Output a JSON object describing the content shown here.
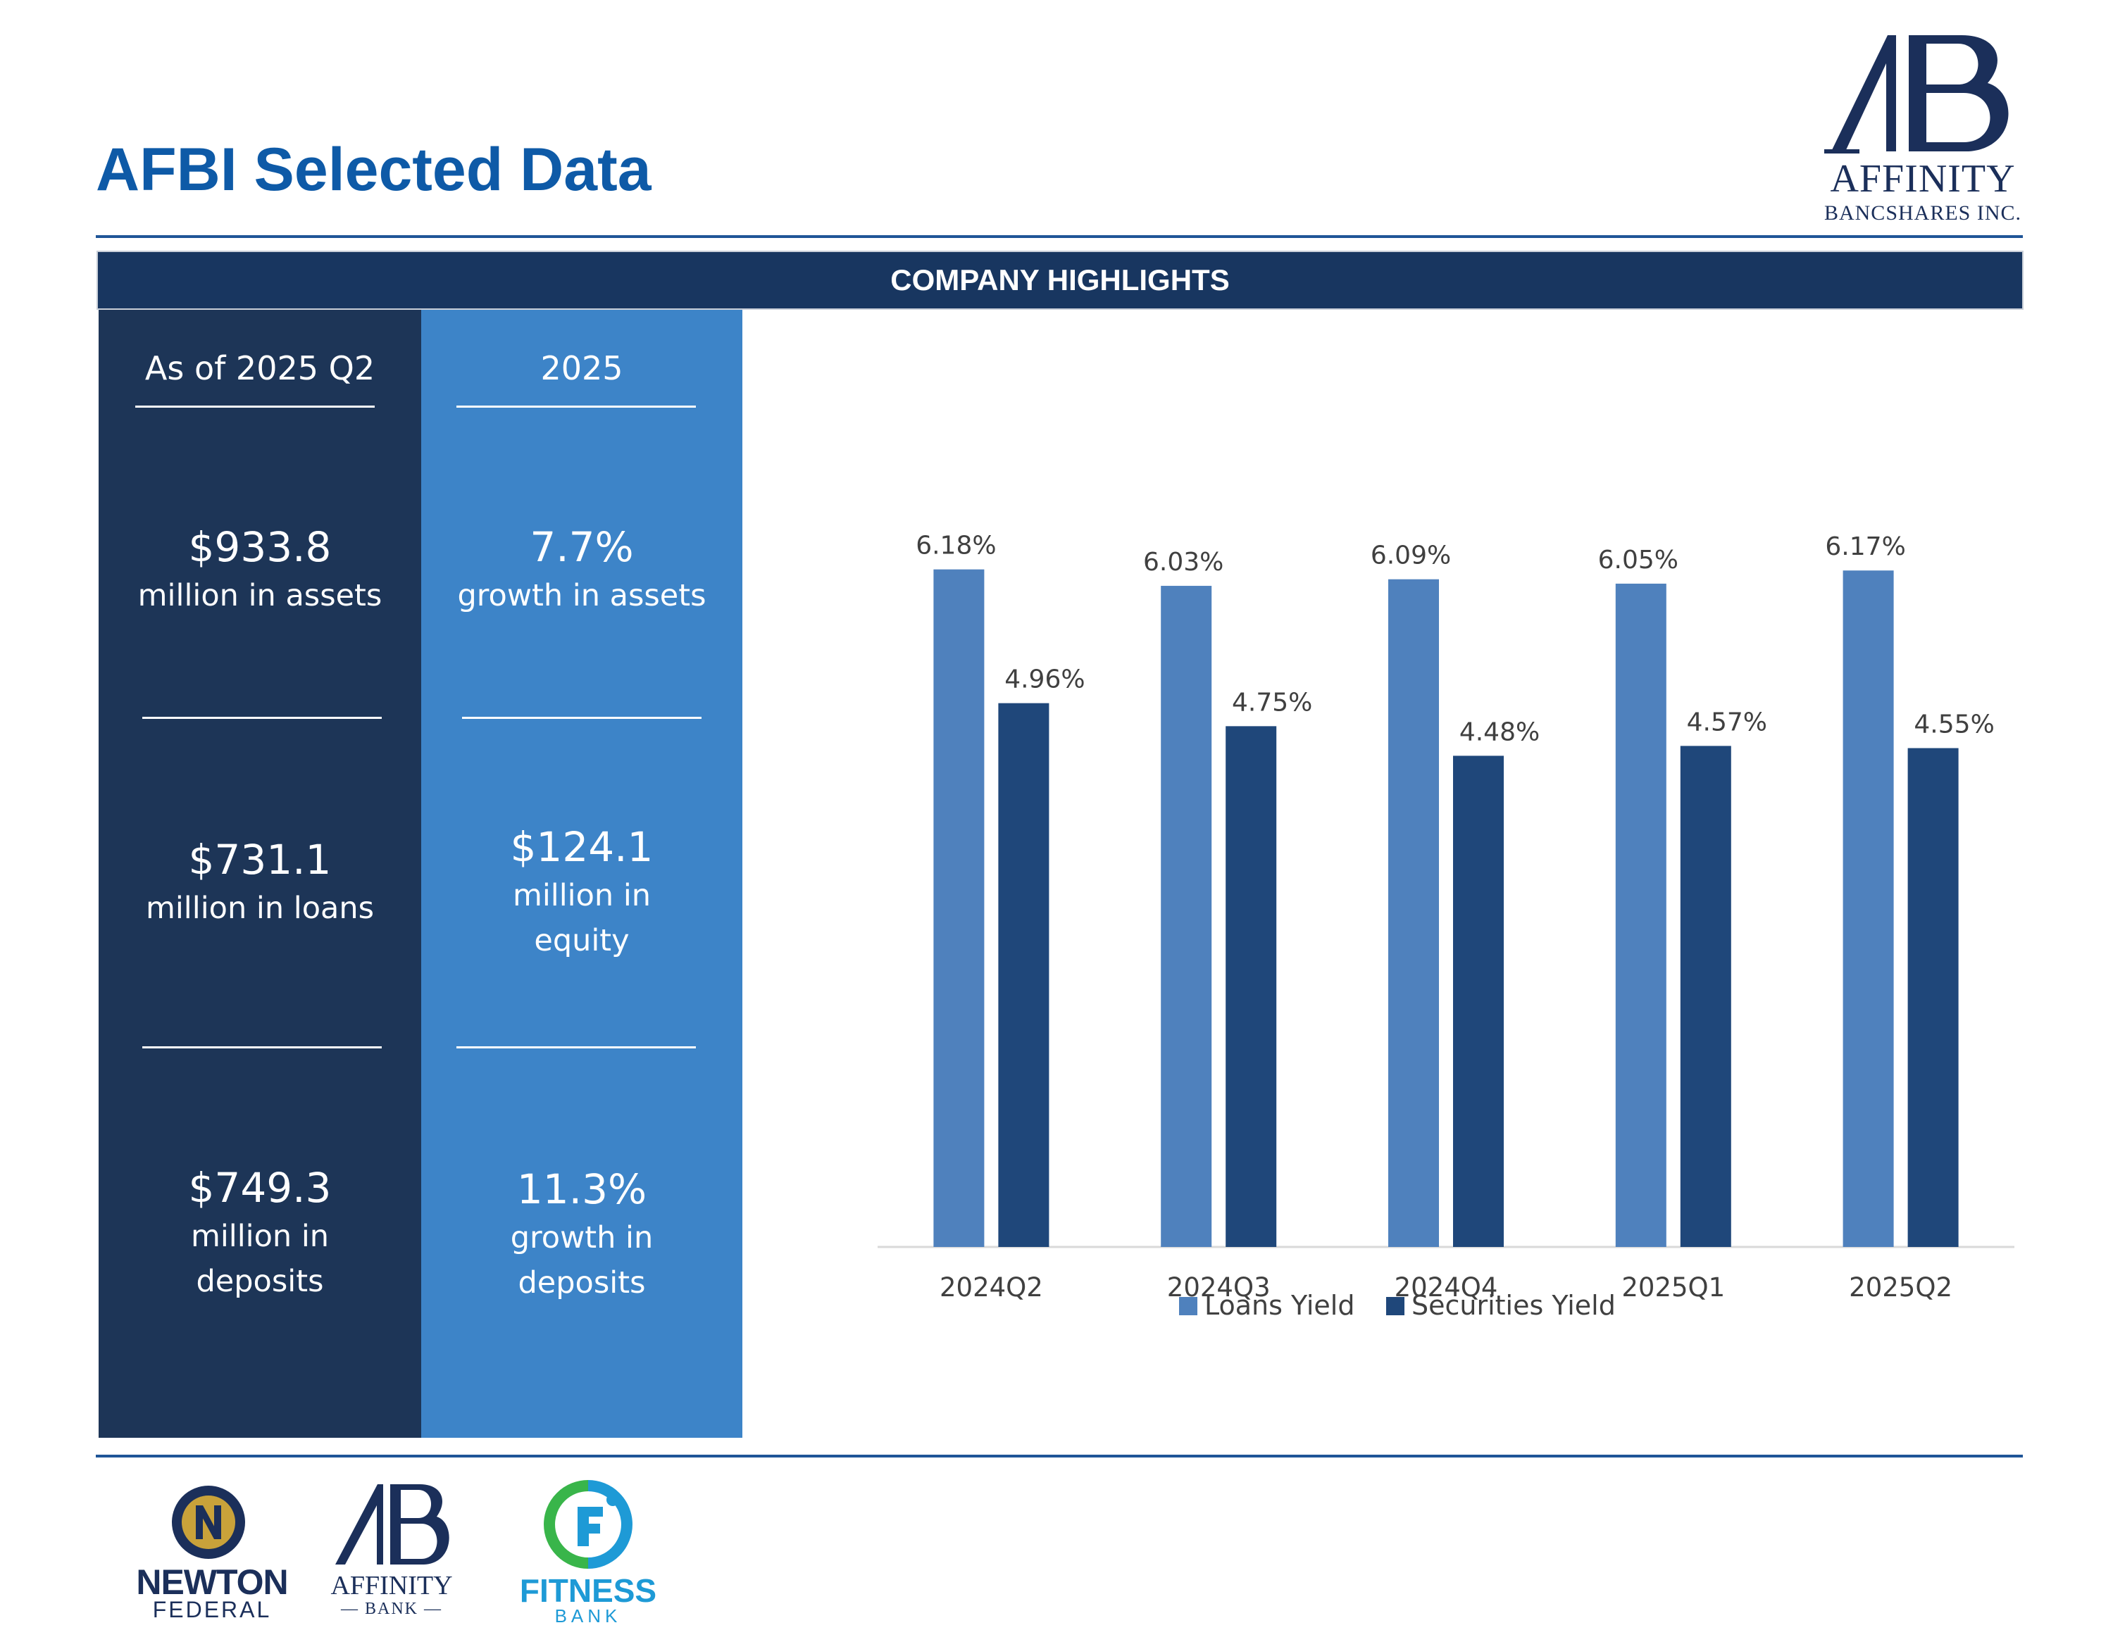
{
  "header": {
    "title": "AFBI Selected Data",
    "logo_name": "AFFINITY",
    "logo_sub": "BANCSHARES INC."
  },
  "banner": {
    "label": "COMPANY HIGHLIGHTS"
  },
  "highlights": {
    "left": {
      "heading": "As of 2025 Q2",
      "items": [
        {
          "value": "$933.8",
          "desc": [
            "million in assets"
          ]
        },
        {
          "value": "$731.1",
          "desc": [
            "million in loans"
          ]
        },
        {
          "value": "$749.3",
          "desc": [
            "million in",
            "deposits"
          ]
        }
      ]
    },
    "right": {
      "heading": "2025",
      "items": [
        {
          "value": "7.7%",
          "desc": [
            "growth in assets"
          ]
        },
        {
          "value": "$124.1",
          "desc": [
            "million in",
            "equity"
          ]
        },
        {
          "value": "11.3%",
          "desc": [
            "growth in",
            "deposits"
          ]
        }
      ]
    }
  },
  "chart_data": {
    "type": "bar",
    "categories": [
      "2024Q2",
      "2024Q3",
      "2024Q4",
      "2025Q1",
      "2025Q2"
    ],
    "series": [
      {
        "name": "Loans Yield",
        "values": [
          6.18,
          6.03,
          6.09,
          6.05,
          6.17
        ],
        "labels": [
          "6.18%",
          "6.03%",
          "6.09%",
          "6.05%",
          "6.17%"
        ],
        "color": "#4f81bd"
      },
      {
        "name": "Securities Yield",
        "values": [
          4.96,
          4.75,
          4.48,
          4.57,
          4.55
        ],
        "labels": [
          "4.96%",
          "4.75%",
          "4.48%",
          "4.57%",
          "4.55%"
        ],
        "color": "#1f477a"
      }
    ],
    "ylim": [
      0,
      6.3
    ],
    "grid": false,
    "legend": "bottom",
    "title": "",
    "xlabel": "",
    "ylabel": ""
  },
  "footer": {
    "newton": {
      "line1": "NEWTON",
      "line2": "FEDERAL"
    },
    "affinity_bank": {
      "line1": "AFFINITY",
      "line2": "— BANK —"
    },
    "fitness": {
      "line1": "FITNESS",
      "line2": "BANK"
    }
  },
  "colors": {
    "title": "#0e5aa7",
    "banner": "#183660",
    "left_column": "#1d3557",
    "right_column": "#3d84c8"
  }
}
